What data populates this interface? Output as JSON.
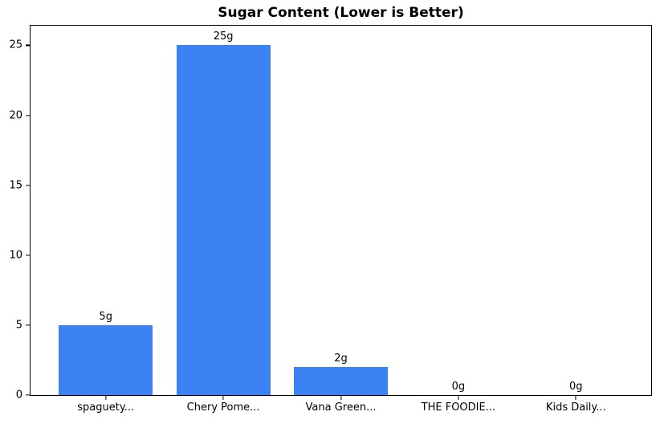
{
  "figure": {
    "background": "#ffffff"
  },
  "chart_data": {
    "type": "bar",
    "title": "Sugar Content (Lower is Better)",
    "categories": [
      "spaguety...",
      "Chery Pome...",
      "Vana Green...",
      "THE FOODIE...",
      "Kids Daily..."
    ],
    "values": [
      5,
      25,
      2,
      0,
      0
    ],
    "bar_labels": [
      "5g",
      "25g",
      "2g",
      "0g",
      "0g"
    ],
    "unit": "g",
    "xlabel": "",
    "ylabel": "",
    "yticks": [
      0,
      5,
      10,
      15,
      20,
      25
    ],
    "ylim": [
      0,
      26.4
    ],
    "grid": false,
    "legend": null,
    "bar_color": "#3d82f4",
    "axis_color": "#000000",
    "text_color": "#000000"
  }
}
